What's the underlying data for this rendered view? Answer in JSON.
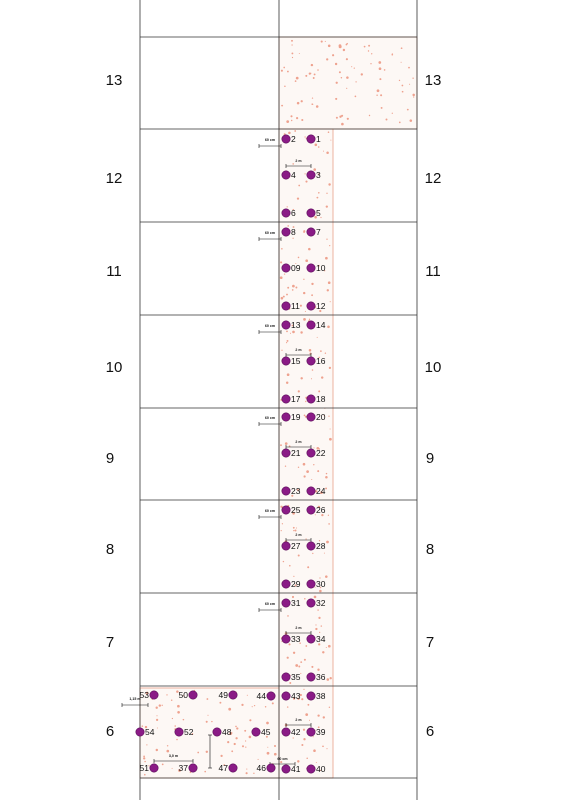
{
  "rows": [
    {
      "label": "13"
    },
    {
      "label": "12"
    },
    {
      "label": "11"
    },
    {
      "label": "10"
    },
    {
      "label": "9"
    },
    {
      "label": "8"
    },
    {
      "label": "7"
    },
    {
      "label": "6"
    }
  ],
  "colors": {
    "point": "#8a1b86",
    "zone_border": "#e8a08a",
    "zone_fill": "#fdf8f5",
    "grid": "#333333"
  },
  "points": [
    {
      "label": "1"
    },
    {
      "label": "2"
    },
    {
      "label": "3"
    },
    {
      "label": "4"
    },
    {
      "label": "5"
    },
    {
      "label": "6"
    },
    {
      "label": "7"
    },
    {
      "label": "8"
    },
    {
      "label": "10"
    },
    {
      "label": "09"
    },
    {
      "label": "12"
    },
    {
      "label": "11"
    },
    {
      "label": "14"
    },
    {
      "label": "13"
    },
    {
      "label": "16"
    },
    {
      "label": "15"
    },
    {
      "label": "18"
    },
    {
      "label": "17"
    },
    {
      "label": "20"
    },
    {
      "label": "19"
    },
    {
      "label": "22"
    },
    {
      "label": "21"
    },
    {
      "label": "24"
    },
    {
      "label": "23"
    },
    {
      "label": "26"
    },
    {
      "label": "25"
    },
    {
      "label": "28"
    },
    {
      "label": "27"
    },
    {
      "label": "30"
    },
    {
      "label": "29"
    },
    {
      "label": "32"
    },
    {
      "label": "31"
    },
    {
      "label": "34"
    },
    {
      "label": "33"
    },
    {
      "label": "36"
    },
    {
      "label": "35"
    },
    {
      "label": "43"
    },
    {
      "label": "38"
    },
    {
      "label": "42"
    },
    {
      "label": "39"
    },
    {
      "label": "41"
    },
    {
      "label": "40"
    },
    {
      "label": "53"
    },
    {
      "label": "50"
    },
    {
      "label": "49"
    },
    {
      "label": "44"
    },
    {
      "label": "54"
    },
    {
      "label": "52"
    },
    {
      "label": "48"
    },
    {
      "label": "45"
    },
    {
      "label": "51"
    },
    {
      "label": "37"
    },
    {
      "label": "47"
    },
    {
      "label": "46"
    }
  ],
  "dimensions": [
    {
      "label": "60 cm"
    },
    {
      "label": "2 m"
    },
    {
      "label": "60 cm"
    },
    {
      "label": "60 cm"
    },
    {
      "label": "2 m"
    },
    {
      "label": "60 cm"
    },
    {
      "label": "2 m"
    },
    {
      "label": "60 cm"
    },
    {
      "label": "2 m"
    },
    {
      "label": "60 cm"
    },
    {
      "label": "2 m"
    },
    {
      "label": "1,15 m"
    },
    {
      "label": "2 m"
    },
    {
      "label": "3,0 m"
    },
    {
      "label": "60 cm"
    }
  ]
}
